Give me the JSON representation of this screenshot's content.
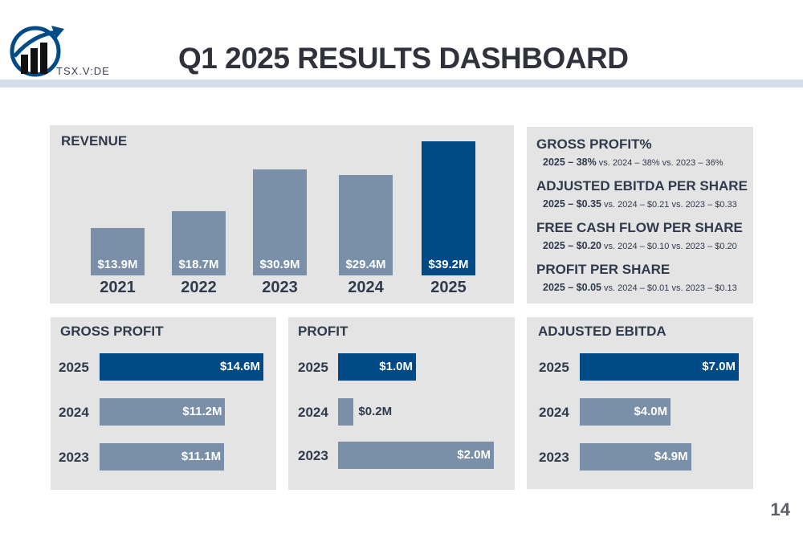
{
  "header": {
    "title": "Q1 2025 RESULTS DASHBOARD",
    "ticker": "TSX.V:DE",
    "page_number": "14"
  },
  "colors": {
    "highlight": "#004b87",
    "bar": "#7a8fa8",
    "panel": "#e4e4e4",
    "rule": "#d5dfe9"
  },
  "kpis": [
    {
      "title": "GROSS PROFIT%",
      "main": "2025 – 38%",
      "rest": " vs. 2024 – 38% vs. 2023 – 36%"
    },
    {
      "title": "ADJUSTED EBITDA PER SHARE",
      "main": "2025 – $0.35",
      "rest": " vs. 2024 – $0.21 vs. 2023 – $0.33"
    },
    {
      "title": "FREE CASH FLOW PER SHARE",
      "main": "2025 – $0.20",
      "rest": " vs. 2024 – $0.10 vs. 2023 – $0.20"
    },
    {
      "title": "PROFIT PER SHARE",
      "main": "2025 – $0.05",
      "rest": " vs. 2024 – $0.01 vs. 2023 – $0.13"
    }
  ],
  "chart_data": [
    {
      "type": "bar",
      "orientation": "vertical",
      "title": "REVENUE",
      "categories": [
        "2021",
        "2022",
        "2023",
        "2024",
        "2025"
      ],
      "values": [
        13.9,
        18.7,
        30.9,
        29.4,
        39.2
      ],
      "labels": [
        "$13.9M",
        "$18.7M",
        "$30.9M",
        "$29.4M",
        "$39.2M"
      ],
      "highlight": "2025"
    },
    {
      "type": "bar",
      "orientation": "horizontal",
      "title": "GROSS PROFIT",
      "categories": [
        "2025",
        "2024",
        "2023"
      ],
      "values": [
        14.6,
        11.2,
        11.1
      ],
      "labels": [
        "$14.6M",
        "$11.2M",
        "$11.1M"
      ],
      "highlight": "2025"
    },
    {
      "type": "bar",
      "orientation": "horizontal",
      "title": "PROFIT",
      "categories": [
        "2025",
        "2024",
        "2023"
      ],
      "values": [
        1.0,
        0.2,
        2.0
      ],
      "labels": [
        "$1.0M",
        "$0.2M",
        "$2.0M"
      ],
      "highlight": "2025"
    },
    {
      "type": "bar",
      "orientation": "horizontal",
      "title": "ADJUSTED EBITDA",
      "categories": [
        "2025",
        "2024",
        "2023"
      ],
      "values": [
        7.0,
        4.0,
        4.9
      ],
      "labels": [
        "$7.0M",
        "$4.0M",
        "$4.9M"
      ],
      "highlight": "2025"
    }
  ]
}
